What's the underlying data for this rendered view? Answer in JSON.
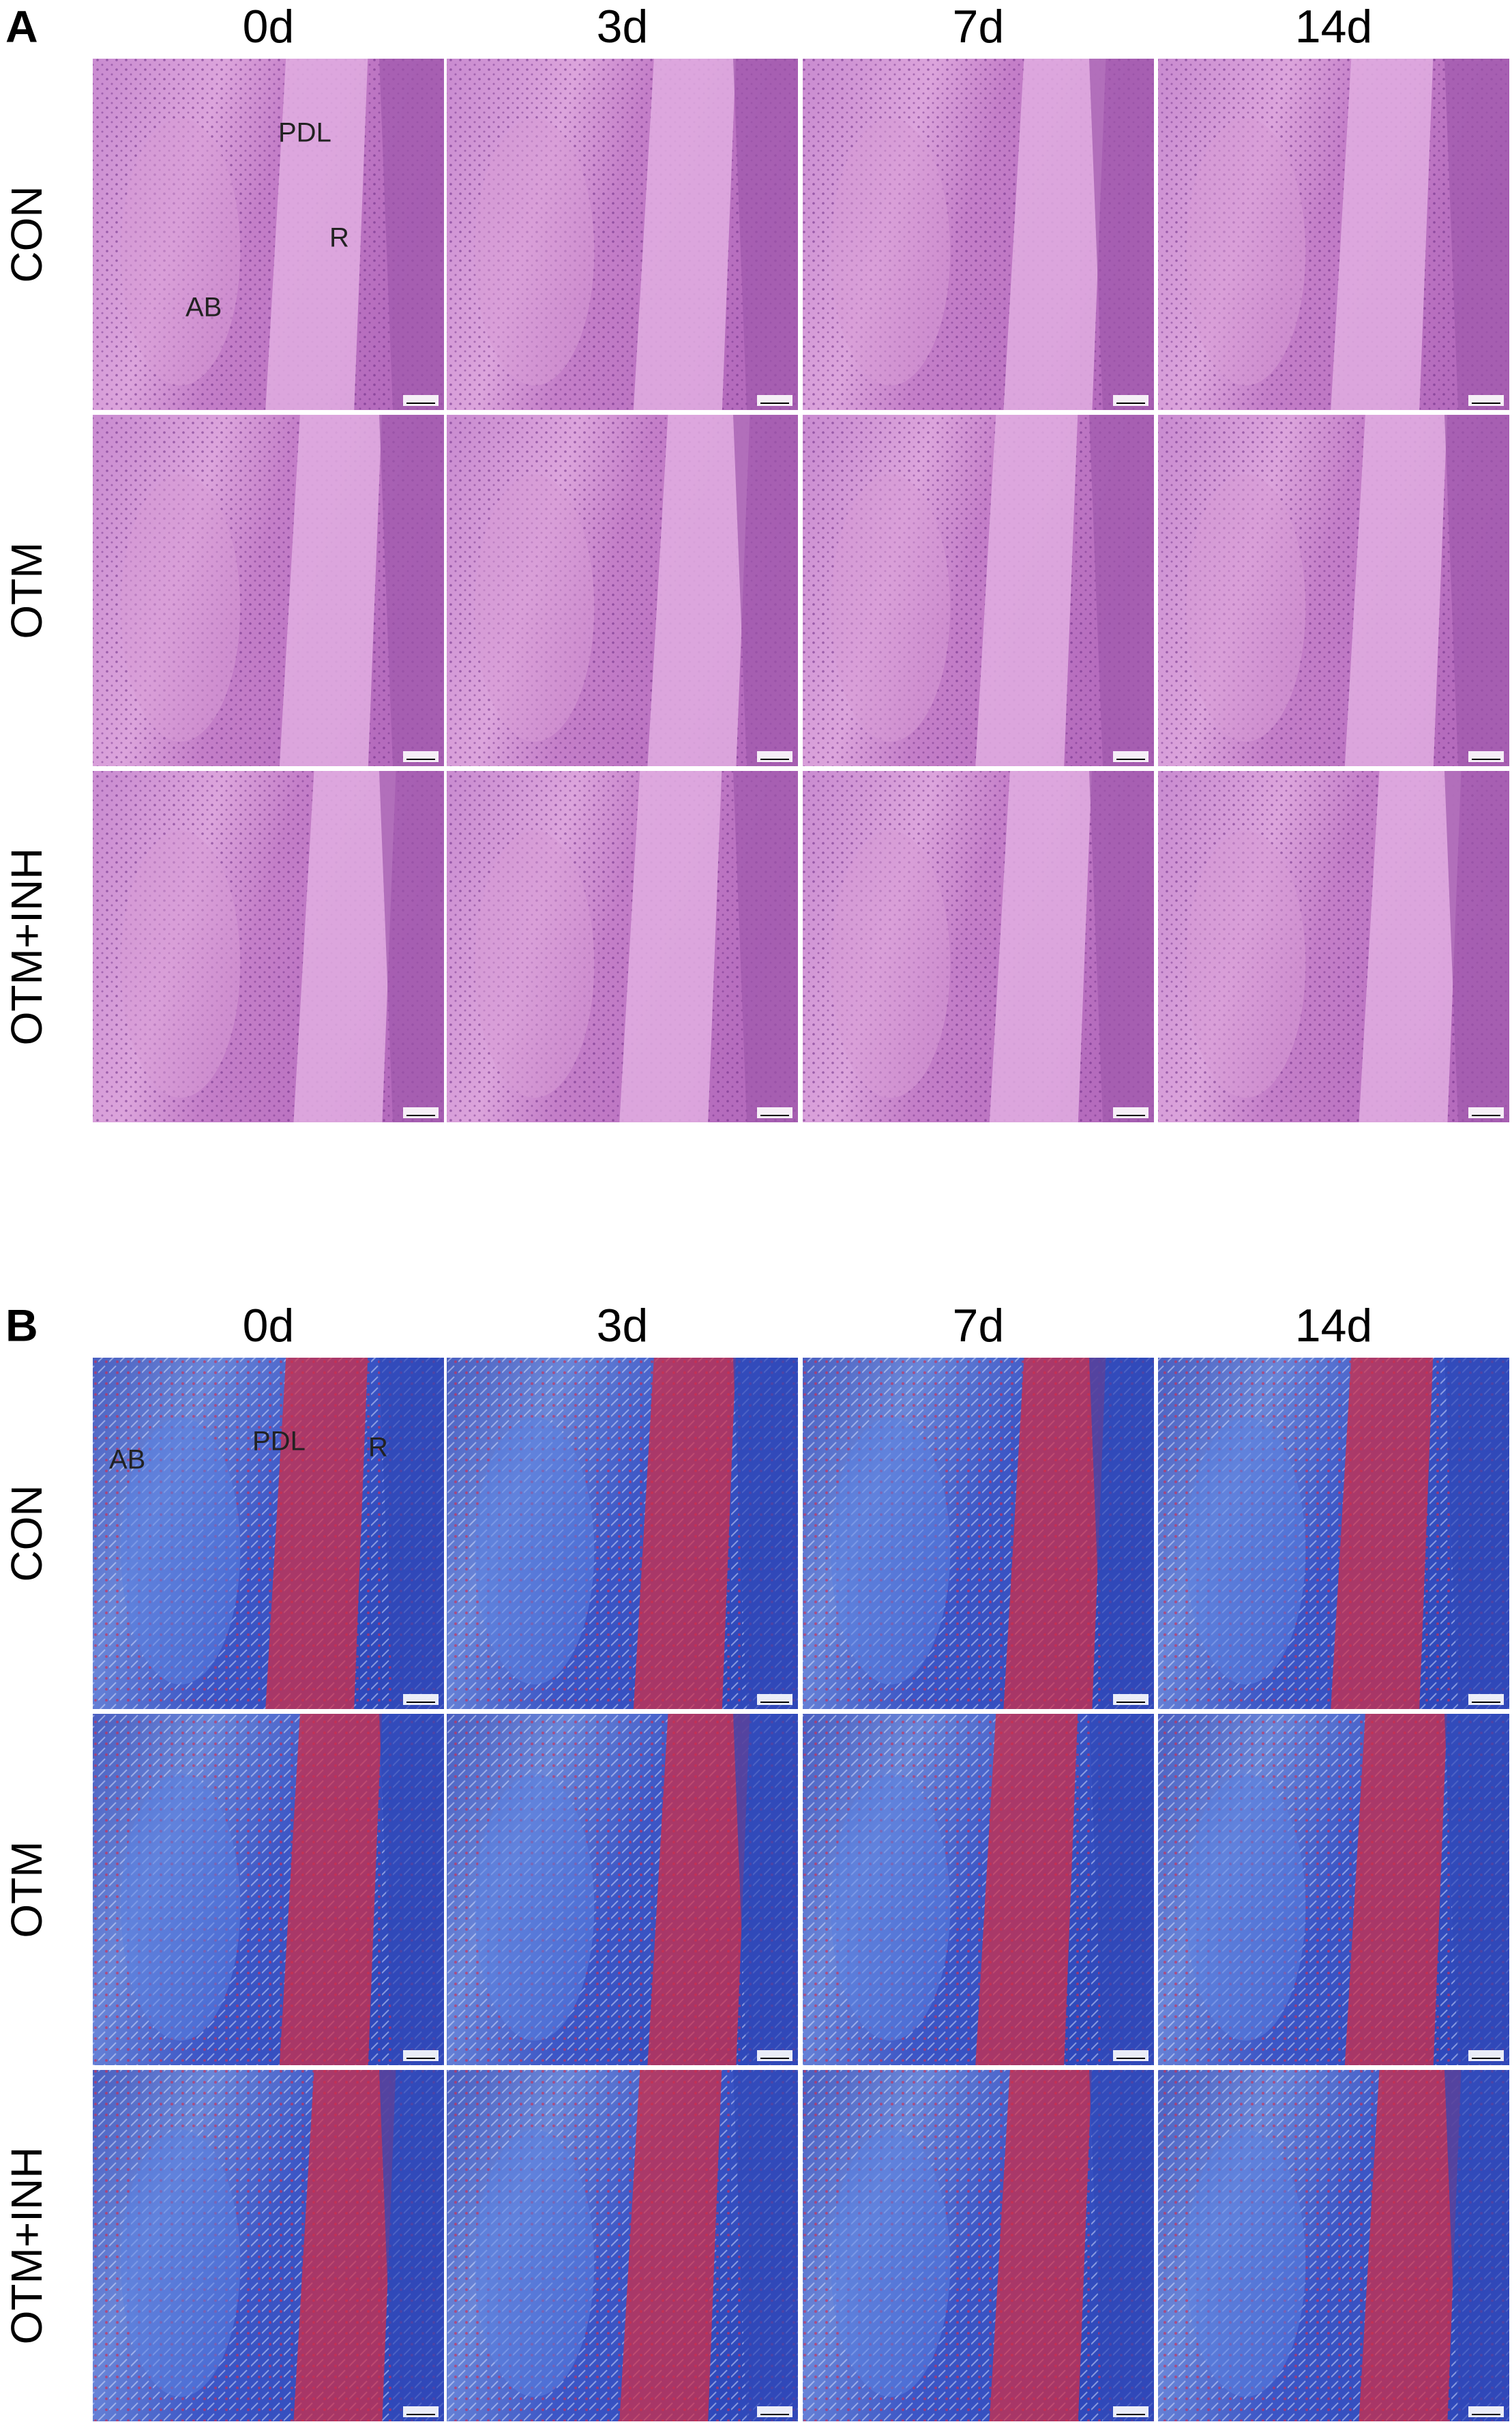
{
  "panels": [
    {
      "label": "A",
      "columns": [
        "0d",
        "3d",
        "7d",
        "14d"
      ],
      "rows": [
        "CON",
        "OTM",
        "OTM+INH"
      ],
      "annotations": [
        "PDL",
        "R",
        "AB"
      ]
    },
    {
      "label": "B",
      "columns": [
        "0d",
        "3d",
        "7d",
        "14d"
      ],
      "rows": [
        "CON",
        "OTM",
        "OTM+INH"
      ],
      "annotations": [
        "AB",
        "PDL",
        "R"
      ]
    }
  ]
}
